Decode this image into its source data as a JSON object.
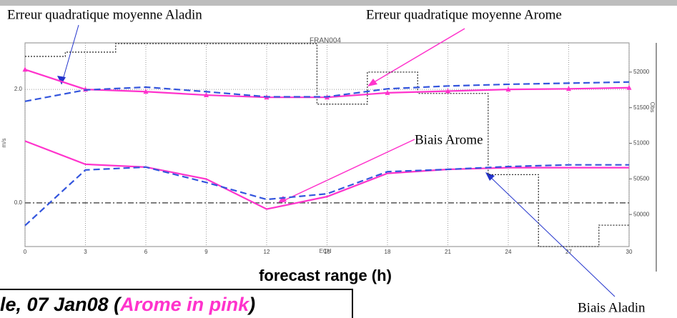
{
  "chart_data": {
    "type": "line",
    "title": "FRAN004",
    "x_label": "forecast range (h)",
    "x_axis_name": "ECH",
    "y_label": "m/s",
    "y2_label": "Obs",
    "x": [
      0,
      3,
      6,
      9,
      12,
      15,
      18,
      21,
      24,
      27,
      30
    ],
    "xlim": [
      0,
      30
    ],
    "xticks": [
      0,
      3,
      6,
      9,
      12,
      15,
      18,
      21,
      24,
      27,
      30
    ],
    "ylim": [
      -0.77,
      2.82
    ],
    "yticks": [
      {
        "value": 0,
        "label": "0.0"
      },
      {
        "value": 2,
        "label": "2.0"
      }
    ],
    "y2lim": [
      49550,
      52410
    ],
    "y2ticks": [
      52000,
      51500,
      51000,
      50500,
      50000
    ],
    "grid": true,
    "series": [
      {
        "name": "Erreur quadratique moyenne Arome",
        "color": "#ff33cc",
        "dash": false,
        "markers": true,
        "values": [
          2.35,
          2.0,
          1.96,
          1.9,
          1.86,
          1.86,
          1.94,
          1.97,
          2.0,
          2.01,
          2.03
        ]
      },
      {
        "name": "Erreur quadratique moyenne Aladin",
        "color": "#3355dd",
        "dash": true,
        "markers": false,
        "values": [
          1.79,
          1.99,
          2.04,
          1.96,
          1.87,
          1.87,
          2.01,
          2.06,
          2.09,
          2.11,
          2.13
        ]
      },
      {
        "name": "Biais Arome",
        "color": "#ff33cc",
        "dash": false,
        "markers": false,
        "values": [
          1.09,
          0.68,
          0.63,
          0.42,
          -0.11,
          0.11,
          0.52,
          0.59,
          0.62,
          0.62,
          0.62
        ]
      },
      {
        "name": "Biais Aladin",
        "color": "#3355dd",
        "dash": true,
        "markers": false,
        "values": [
          -0.4,
          0.58,
          0.63,
          0.36,
          0.06,
          0.16,
          0.55,
          0.59,
          0.64,
          0.67,
          0.67
        ]
      }
    ],
    "obs_steps": {
      "axis": "y2",
      "color": "#333333",
      "x": [
        0,
        2,
        4.5,
        14.5,
        17,
        19.5,
        23,
        25.5,
        28.5
      ],
      "values": [
        52220,
        52280,
        52400,
        51550,
        52000,
        51700,
        50560,
        49550,
        49850
      ]
    },
    "caption": {
      "prefix": "le, 07 Jan08 (",
      "highlight": "Arome in pink",
      "suffix": ")"
    }
  }
}
